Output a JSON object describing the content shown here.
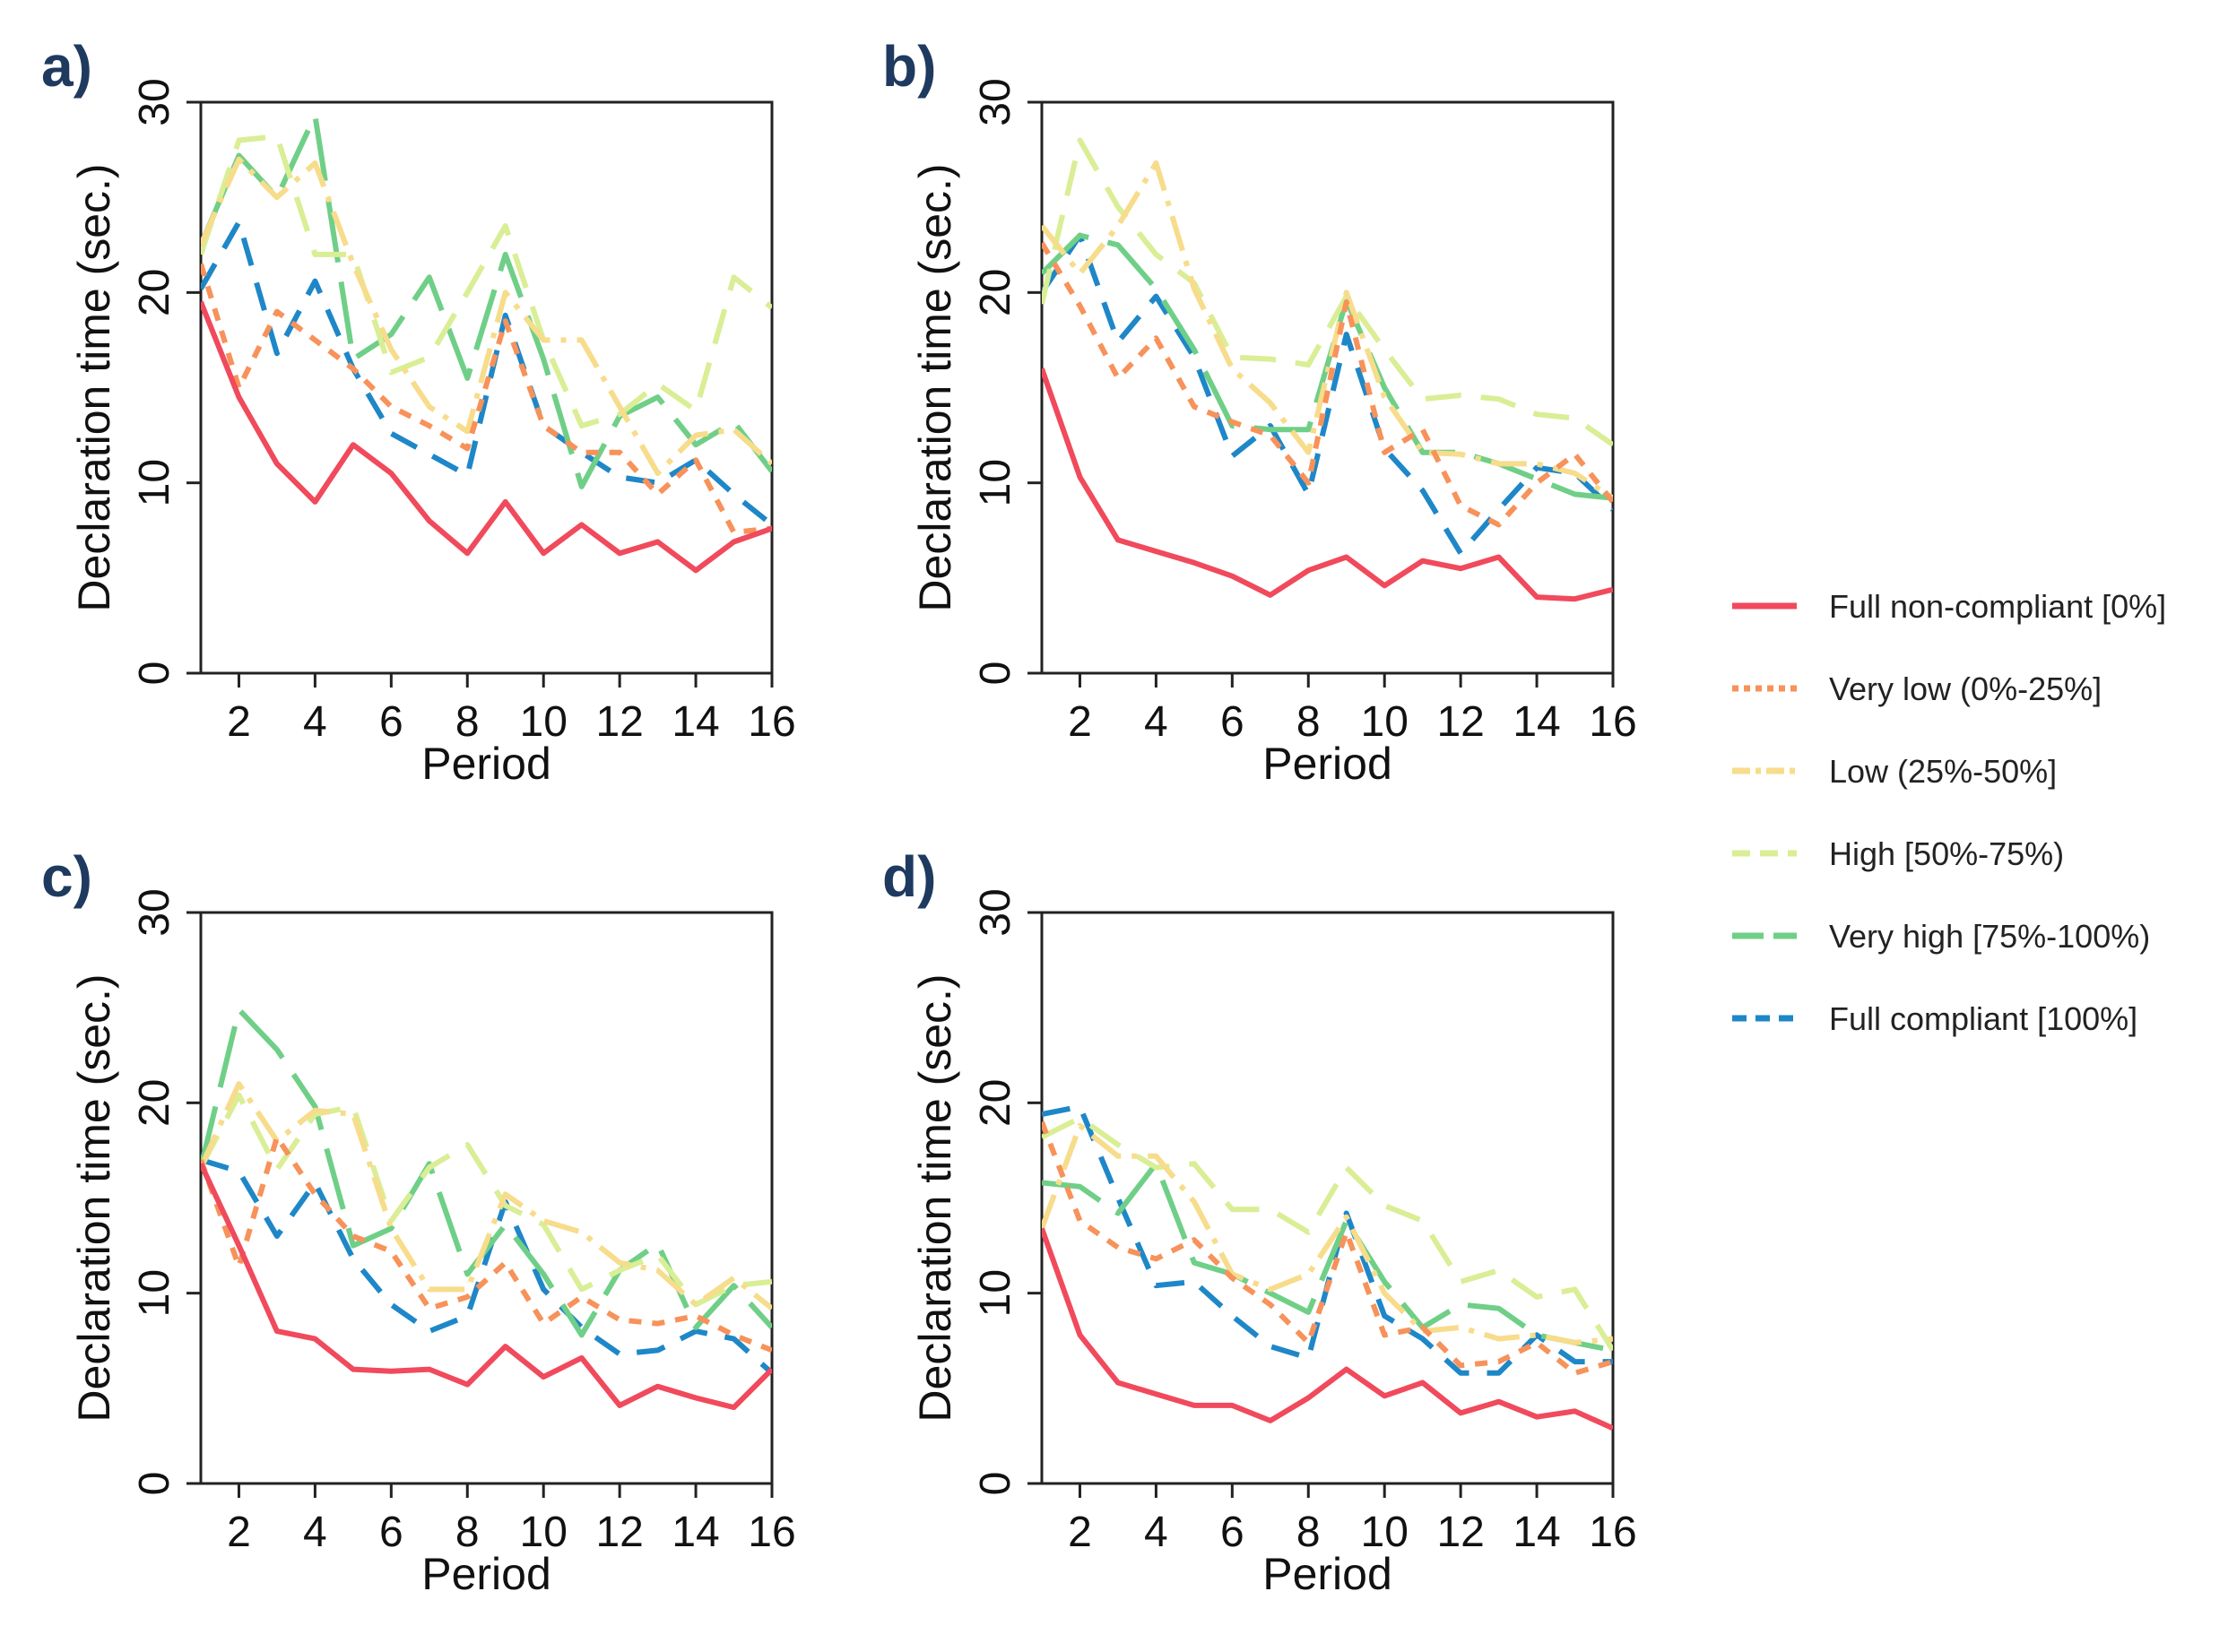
{
  "series_styles": [
    {
      "name": "Full non-compliant [0%]",
      "color": "#f04a5c",
      "dash": "none",
      "legend_label": "Full non-compliant [0%]"
    },
    {
      "name": "Very low (0%-25%]",
      "color": "#f7925a",
      "dash": "14,12",
      "legend_label": "Very low (0%-25%]"
    },
    {
      "name": "Low (25%-50%]",
      "color": "#f7dc8c",
      "dash": "40,12,6,12",
      "legend_label": "Low (25%-50%]"
    },
    {
      "name": "High [50%-75%)",
      "color": "#d9ee95",
      "dash": "40,22",
      "legend_label": "High [50%-75%)"
    },
    {
      "name": "Very high [75%-100%)",
      "color": "#6fcf87",
      "dash": "70,22",
      "legend_label": "Very high [75%-100%)"
    },
    {
      "name": "Full compliant [100%]",
      "color": "#1e87c8",
      "dash": "32,20",
      "legend_label": "Full compliant [100%]"
    }
  ],
  "chart_data": [
    {
      "type": "line",
      "panel_label": "a)",
      "xlabel": "Period",
      "ylabel": "Declaration time (sec.)",
      "xlim": [
        1,
        16
      ],
      "ylim": [
        0,
        30
      ],
      "xticks": [
        "2",
        "4",
        "6",
        "8",
        "10",
        "12",
        "14",
        "16"
      ],
      "yticks": [
        "0",
        "10",
        "20",
        "30"
      ],
      "x": [
        1,
        2,
        3,
        4,
        5,
        6,
        7,
        8,
        9,
        10,
        11,
        12,
        13,
        14,
        15,
        16
      ],
      "series": [
        {
          "name": "Full non-compliant [0%]",
          "values": [
            19.5,
            14.5,
            11,
            9,
            12,
            10.5,
            8,
            6.3,
            9,
            6.3,
            7.8,
            6.3,
            6.9,
            5.4,
            6.9,
            7.6
          ]
        },
        {
          "name": "Very low (0%-25%]",
          "values": [
            21.5,
            15,
            19,
            17.5,
            16,
            14,
            13,
            11.8,
            18.5,
            13,
            11.6,
            11.6,
            9.4,
            11.2,
            7.4,
            7.6
          ]
        },
        {
          "name": "Low (25%-50%]",
          "values": [
            22.5,
            27,
            25,
            26.8,
            21.5,
            17,
            14,
            12.7,
            20,
            17.5,
            17.5,
            14,
            10.5,
            12.5,
            12.8,
            11
          ]
        },
        {
          "name": "High [50%-75%)",
          "values": [
            22,
            28,
            28.2,
            22,
            22,
            15.8,
            16.6,
            20,
            23.5,
            17.5,
            13,
            13.6,
            15.2,
            13.8,
            20.8,
            19.2
          ]
        },
        {
          "name": "Very high [75%-100%)",
          "values": [
            22.5,
            27.2,
            25,
            29.3,
            16.5,
            17.8,
            20.8,
            15.5,
            22,
            16.5,
            9.8,
            13.5,
            14.5,
            12,
            13.2,
            10.6
          ]
        },
        {
          "name": "Full compliant [100%]",
          "values": [
            20.2,
            23.7,
            16.8,
            20.6,
            16,
            12.6,
            11.5,
            10.4,
            18.8,
            13,
            11.6,
            10.3,
            10,
            11.2,
            9.4,
            7.8
          ]
        }
      ]
    },
    {
      "type": "line",
      "panel_label": "b)",
      "xlabel": "Period",
      "ylabel": "Declaration time (sec.)",
      "xlim": [
        1,
        16
      ],
      "ylim": [
        0,
        30
      ],
      "xticks": [
        "2",
        "4",
        "6",
        "8",
        "10",
        "12",
        "14",
        "16"
      ],
      "yticks": [
        "0",
        "10",
        "20",
        "30"
      ],
      "x": [
        1,
        2,
        3,
        4,
        5,
        6,
        7,
        8,
        9,
        10,
        11,
        12,
        13,
        14,
        15,
        16
      ],
      "series": [
        {
          "name": "Full non-compliant [0%]",
          "values": [
            16,
            10.3,
            7,
            6.4,
            5.8,
            5.1,
            4.1,
            5.4,
            6.1,
            4.6,
            5.9,
            5.5,
            6.1,
            4,
            3.9,
            4.4
          ]
        },
        {
          "name": "Very low (0%-25%]",
          "values": [
            22.6,
            19.3,
            15.5,
            17.6,
            14,
            13.2,
            12.5,
            10,
            19.5,
            11.6,
            12.8,
            8.8,
            7.8,
            10,
            11.5,
            9
          ]
        },
        {
          "name": "Low (25%-50%]",
          "values": [
            23.5,
            21,
            23.5,
            26.8,
            20.2,
            16,
            14.2,
            11.6,
            20,
            14.5,
            11.6,
            11.5,
            11,
            11,
            10.5,
            9.2
          ]
        },
        {
          "name": "High [50%-75%)",
          "values": [
            19.4,
            28,
            24.5,
            22,
            20.5,
            16.6,
            16.5,
            16.2,
            19.8,
            17,
            14.4,
            14.6,
            14.4,
            13.6,
            13.4,
            12
          ]
        },
        {
          "name": "Very high [75%-100%)",
          "values": [
            21,
            23,
            22.5,
            20.2,
            17,
            13,
            12.8,
            12.8,
            19.6,
            15,
            11.6,
            11.6,
            11,
            10.2,
            9.4,
            9.2
          ]
        },
        {
          "name": "Full compliant [100%]",
          "values": [
            20,
            23,
            17.4,
            19.8,
            16.6,
            11.4,
            13,
            9.4,
            17.8,
            11.8,
            9.6,
            6.3,
            8.6,
            10.8,
            10.5,
            8.6
          ]
        }
      ]
    },
    {
      "type": "line",
      "panel_label": "c)",
      "xlabel": "Period",
      "ylabel": "Declaration time (sec.)",
      "xlim": [
        1,
        16
      ],
      "ylim": [
        0,
        30
      ],
      "xticks": [
        "2",
        "4",
        "6",
        "8",
        "10",
        "12",
        "14",
        "16"
      ],
      "yticks": [
        "0",
        "10",
        "20",
        "30"
      ],
      "x": [
        1,
        2,
        3,
        4,
        5,
        6,
        7,
        8,
        9,
        10,
        11,
        12,
        13,
        14,
        15,
        16
      ],
      "series": [
        {
          "name": "Full non-compliant [0%]",
          "values": [
            16.8,
            12.5,
            8,
            7.6,
            6,
            5.9,
            6,
            5.2,
            7.2,
            5.6,
            6.6,
            4.1,
            5.1,
            4.5,
            4,
            6
          ]
        },
        {
          "name": "Very low (0%-25%]",
          "values": [
            17,
            11.4,
            18.2,
            15.2,
            13,
            12.2,
            9.2,
            9.8,
            11.6,
            8.4,
            9.8,
            8.6,
            8.4,
            8.8,
            7.8,
            7
          ]
        },
        {
          "name": "Low (25%-50%]",
          "values": [
            16.6,
            21,
            18,
            19.6,
            19.4,
            13.4,
            10.2,
            10.2,
            15.2,
            13.8,
            13.2,
            11.6,
            11.2,
            9.4,
            10.8,
            9.2
          ]
        },
        {
          "name": "High [50%-75%)",
          "values": [
            16.6,
            20.4,
            16.5,
            19.4,
            19.8,
            13.8,
            16.6,
            17.8,
            14.6,
            13.6,
            10.2,
            11.2,
            12,
            9.4,
            10.4,
            10.6
          ]
        },
        {
          "name": "Very high [75%-100%)",
          "values": [
            16.6,
            24.9,
            22.8,
            19.8,
            12.5,
            13.4,
            16.8,
            11,
            13.6,
            11,
            7.8,
            11.2,
            12.6,
            8.2,
            10.4,
            8.2
          ]
        },
        {
          "name": "Full compliant [100%]",
          "values": [
            17,
            16.4,
            13,
            15.8,
            11.8,
            9.4,
            8,
            8.8,
            14.8,
            10.2,
            8.2,
            6.8,
            7,
            8,
            7.6,
            5.8
          ]
        }
      ]
    },
    {
      "type": "line",
      "panel_label": "d)",
      "xlabel": "Period",
      "ylabel": "Declaration time (sec.)",
      "xlim": [
        1,
        16
      ],
      "ylim": [
        0,
        30
      ],
      "xticks": [
        "2",
        "4",
        "6",
        "8",
        "10",
        "12",
        "14",
        "16"
      ],
      "yticks": [
        "0",
        "10",
        "20",
        "30"
      ],
      "x": [
        1,
        2,
        3,
        4,
        5,
        6,
        7,
        8,
        9,
        10,
        11,
        12,
        13,
        14,
        15,
        16
      ],
      "series": [
        {
          "name": "Full non-compliant [0%]",
          "values": [
            13.4,
            7.8,
            5.3,
            4.7,
            4.1,
            4.1,
            3.3,
            4.5,
            6,
            4.6,
            5.3,
            3.7,
            4.3,
            3.5,
            3.8,
            2.9
          ]
        },
        {
          "name": "Very low (0%-25%]",
          "values": [
            19,
            13.8,
            12.4,
            11.8,
            12.8,
            10.8,
            9.4,
            7.4,
            13.2,
            7.8,
            8.2,
            6.2,
            6.4,
            7.4,
            5.8,
            6.4
          ]
        },
        {
          "name": "Low (25%-50%]",
          "values": [
            13.4,
            18.8,
            17.2,
            17.2,
            14.8,
            11,
            10.2,
            11,
            14,
            10,
            8,
            8.2,
            7.6,
            7.8,
            7.4,
            7.6
          ]
        },
        {
          "name": "High [50%-75%)",
          "values": [
            18.2,
            19.2,
            17.8,
            16.6,
            16.8,
            14.4,
            14.4,
            13.2,
            16.6,
            14.6,
            13.8,
            10.6,
            11.2,
            9.8,
            10.2,
            7
          ]
        },
        {
          "name": "Very high [75%-100%)",
          "values": [
            15.8,
            15.6,
            14.2,
            16.8,
            11.6,
            11,
            10,
            9,
            13.8,
            10.6,
            8.2,
            9.4,
            9.2,
            7.8,
            7.4,
            7
          ]
        },
        {
          "name": "Full compliant [100%]",
          "values": [
            19.4,
            19.8,
            15,
            10.4,
            10.6,
            8.8,
            7.2,
            6.6,
            14.2,
            8.8,
            7.6,
            5.8,
            5.8,
            7.8,
            6.4,
            6.4
          ]
        }
      ]
    }
  ]
}
